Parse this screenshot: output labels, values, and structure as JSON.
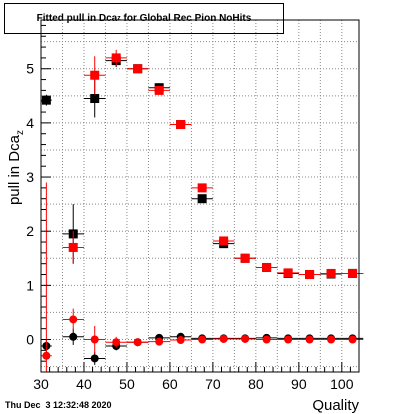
{
  "chart_data": {
    "type": "scatter",
    "title_main": "Fitted pull in Dca",
    "title_sub": "z",
    "title_rest": " for Global Rec Pion NoHits",
    "xlabel": "Quality",
    "ylabel": "pull in Dca",
    "ylabel_sub": "z",
    "xlim": [
      30,
      104
    ],
    "ylim": [
      -0.6,
      5.9
    ],
    "xticks": [
      30,
      40,
      50,
      60,
      70,
      80,
      90,
      100
    ],
    "yticks": [
      0,
      1,
      2,
      3,
      4,
      5
    ],
    "grid": true,
    "series": [
      {
        "color": "#000000",
        "marker": "square",
        "points": [
          {
            "x": 31.25,
            "y": 4.42,
            "err": 0.1
          },
          {
            "x": 37.5,
            "y": 1.95,
            "err": 0.55
          },
          {
            "x": 42.5,
            "y": 4.45,
            "err": 0.35
          },
          {
            "x": 47.5,
            "y": 5.15,
            "err": 0.12
          },
          {
            "x": 52.5,
            "y": 5.0,
            "err": 0.06
          },
          {
            "x": 57.5,
            "y": 4.65,
            "err": 0.05
          },
          {
            "x": 62.5,
            "y": 3.97,
            "err": 0.04
          },
          {
            "x": 67.5,
            "y": 2.6,
            "err": 0.04
          },
          {
            "x": 72.5,
            "y": 1.77,
            "err": 0.03
          },
          {
            "x": 77.5,
            "y": 1.5,
            "err": 0.03
          },
          {
            "x": 82.5,
            "y": 1.33,
            "err": 0.03
          },
          {
            "x": 87.5,
            "y": 1.22,
            "err": 0.03
          },
          {
            "x": 92.5,
            "y": 1.2,
            "err": 0.03
          },
          {
            "x": 97.5,
            "y": 1.21,
            "err": 0.03
          },
          {
            "x": 102.5,
            "y": 1.22,
            "err": 0.03
          }
        ]
      },
      {
        "color": "#ff0000",
        "marker": "square",
        "points": [
          {
            "x": 37.5,
            "y": 1.7,
            "err": 0.3
          },
          {
            "x": 42.5,
            "y": 4.88,
            "err": 0.35
          },
          {
            "x": 47.5,
            "y": 5.2,
            "err": 0.15
          },
          {
            "x": 52.5,
            "y": 5.0,
            "err": 0.06
          },
          {
            "x": 57.5,
            "y": 4.6,
            "err": 0.05
          },
          {
            "x": 62.5,
            "y": 3.97,
            "err": 0.04
          },
          {
            "x": 67.5,
            "y": 2.8,
            "err": 0.04
          },
          {
            "x": 72.5,
            "y": 1.82,
            "err": 0.03
          },
          {
            "x": 77.5,
            "y": 1.5,
            "err": 0.03
          },
          {
            "x": 82.5,
            "y": 1.33,
            "err": 0.03
          },
          {
            "x": 87.5,
            "y": 1.23,
            "err": 0.03
          },
          {
            "x": 92.5,
            "y": 1.2,
            "err": 0.03
          },
          {
            "x": 97.5,
            "y": 1.22,
            "err": 0.03
          },
          {
            "x": 102.5,
            "y": 1.22,
            "err": 0.03
          }
        ]
      },
      {
        "color": "#000000",
        "marker": "circle",
        "points": [
          {
            "x": 31.25,
            "y": -0.12,
            "err": 0.12
          },
          {
            "x": 37.5,
            "y": 0.05,
            "err": 0.15
          },
          {
            "x": 42.5,
            "y": -0.35,
            "err": 0.12
          },
          {
            "x": 47.5,
            "y": -0.12,
            "err": 0.08
          },
          {
            "x": 52.5,
            "y": -0.05,
            "err": 0.05
          },
          {
            "x": 57.5,
            "y": 0.03,
            "err": 0.04
          },
          {
            "x": 62.5,
            "y": 0.05,
            "err": 0.04
          },
          {
            "x": 67.5,
            "y": 0.02,
            "err": 0.03
          },
          {
            "x": 72.5,
            "y": 0.02,
            "err": 0.02
          },
          {
            "x": 77.5,
            "y": 0.02,
            "err": 0.02
          },
          {
            "x": 82.5,
            "y": 0.03,
            "err": 0.02
          },
          {
            "x": 87.5,
            "y": 0.02,
            "err": 0.02
          },
          {
            "x": 92.5,
            "y": 0.02,
            "err": 0.02
          },
          {
            "x": 97.5,
            "y": 0.02,
            "err": 0.02
          },
          {
            "x": 102.5,
            "y": 0.02,
            "err": 0.02
          }
        ]
      },
      {
        "color": "#ff0000",
        "marker": "circle",
        "points": [
          {
            "x": 31.25,
            "y": -0.3,
            "err": 3.2
          },
          {
            "x": 37.5,
            "y": 0.37,
            "err": 0.2
          },
          {
            "x": 42.5,
            "y": 0.0,
            "err": 0.25
          },
          {
            "x": 47.5,
            "y": -0.05,
            "err": 0.1
          },
          {
            "x": 52.5,
            "y": -0.05,
            "err": 0.06
          },
          {
            "x": 57.5,
            "y": -0.04,
            "err": 0.05
          },
          {
            "x": 62.5,
            "y": -0.01,
            "err": 0.04
          },
          {
            "x": 67.5,
            "y": 0.0,
            "err": 0.03
          },
          {
            "x": 72.5,
            "y": 0.01,
            "err": 0.02
          },
          {
            "x": 77.5,
            "y": 0.01,
            "err": 0.02
          },
          {
            "x": 82.5,
            "y": 0.0,
            "err": 0.02
          },
          {
            "x": 87.5,
            "y": 0.0,
            "err": 0.02
          },
          {
            "x": 92.5,
            "y": 0.0,
            "err": 0.02
          },
          {
            "x": 97.5,
            "y": 0.0,
            "err": 0.02
          },
          {
            "x": 102.5,
            "y": 0.0,
            "err": 0.02
          }
        ]
      }
    ]
  },
  "footer": "Thu Dec  3 12:32:48 2020"
}
